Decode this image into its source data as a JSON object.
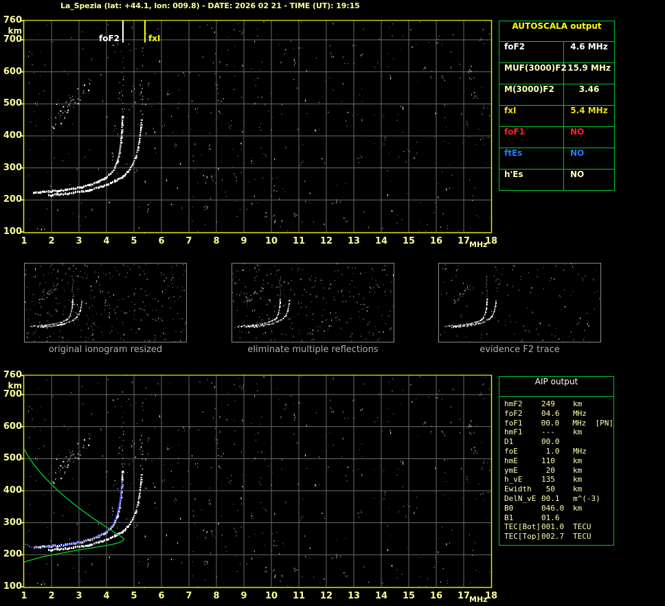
{
  "title": "La_Spezia (lat: +44.1, lon: 009.8) - DATE: 2026 02 21 - TIME (UT): 19:15",
  "colors": {
    "background": "#000000",
    "axis_yellow": "#ffff96",
    "border_yellow": "#e6e600",
    "grid_gray": "#6b6b6b",
    "table_green": "#00c832",
    "pale_yellow": "#ffffb4",
    "bright_yellow": "#f0e000",
    "marker_yellow": "#ffff00",
    "red": "#ff2020",
    "blue": "#2e78ff",
    "white": "#ffffff",
    "caption_gray": "#b0b0b0",
    "profile_green": "#00c828",
    "trace_blue": "#3a4aff"
  },
  "axes": {
    "x_unit": "MHz",
    "y_unit": "km",
    "x_ticks": [
      1,
      2,
      3,
      4,
      5,
      6,
      7,
      8,
      9,
      10,
      11,
      12,
      13,
      14,
      15,
      16,
      17,
      18
    ],
    "y_ticks": [
      760,
      700,
      600,
      500,
      400,
      300,
      200,
      100
    ],
    "x_range": [
      1,
      18
    ],
    "y_range": [
      100,
      760
    ]
  },
  "top_plot": {
    "markers": [
      {
        "label": "foF2",
        "freq": 4.6,
        "color": "#ffffff"
      },
      {
        "label": "fxI",
        "freq": 5.4,
        "color": "#ffff00"
      }
    ]
  },
  "autoscala": {
    "title": "AUTOSCALA output",
    "rows": [
      {
        "label": "foF2",
        "value": "4.6 MHz",
        "color": "white"
      },
      {
        "label": "MUF(3000)F2",
        "value": "15.9 MHz",
        "color": "pale"
      },
      {
        "label": "M(3000)F2",
        "value": "3.46",
        "color": "pale"
      },
      {
        "label": "fxI",
        "value": "5.4 MHz",
        "color": "yellow"
      },
      {
        "label": "foF1",
        "value": "NO",
        "color": "red"
      },
      {
        "label": "ftEs",
        "value": "NO",
        "color": "blue"
      },
      {
        "label": "h'Es",
        "value": "NO",
        "color": "pale"
      }
    ]
  },
  "panels": [
    {
      "caption": "original ionogram resized"
    },
    {
      "caption": "eliminate multiple reflections"
    },
    {
      "caption": "evidence F2 trace"
    }
  ],
  "aip": {
    "title": "AIP output",
    "rows": [
      {
        "label": "hmF2",
        "value": "249",
        "unit": "km"
      },
      {
        "label": "foF2",
        "value": "04.6",
        "unit": "MHz"
      },
      {
        "label": "foF1",
        "value": "00.0",
        "unit": "MHz  [PN]"
      },
      {
        "label": "hmF1",
        "value": "---",
        "unit": "km"
      },
      {
        "label": "D1",
        "value": "00.0",
        "unit": ""
      },
      {
        "label": "foE",
        "value": " 1.0",
        "unit": "MHz"
      },
      {
        "label": "hmE",
        "value": "110",
        "unit": "km"
      },
      {
        "label": "ymE",
        "value": " 20",
        "unit": "km"
      },
      {
        "label": "h_vE",
        "value": "135",
        "unit": "km"
      },
      {
        "label": "Ewidth",
        "value": " 50",
        "unit": "km"
      },
      {
        "label": "DelN_vE",
        "value": "00.1",
        "unit": "m^(-3)"
      },
      {
        "label": "B0",
        "value": "046.0",
        "unit": "km"
      },
      {
        "label": "B1",
        "value": "01.6",
        "unit": ""
      },
      {
        "label": "TEC[Bot]",
        "value": "001.0",
        "unit": "TECU"
      },
      {
        "label": "TEC[Top]",
        "value": "002.7",
        "unit": "TECU"
      }
    ]
  },
  "chart_data": {
    "type": "scatter",
    "xlabel": "MHz",
    "ylabel": "km",
    "xlim": [
      1,
      18
    ],
    "ylim": [
      100,
      760
    ],
    "grid": true,
    "o_trace": [
      [
        1.35,
        221
      ],
      [
        1.6,
        224
      ],
      [
        1.9,
        226
      ],
      [
        2.2,
        228
      ],
      [
        2.5,
        231
      ],
      [
        2.8,
        235
      ],
      [
        3.1,
        240
      ],
      [
        3.4,
        247
      ],
      [
        3.7,
        257
      ],
      [
        3.95,
        268
      ],
      [
        4.15,
        282
      ],
      [
        4.3,
        300
      ],
      [
        4.4,
        322
      ],
      [
        4.47,
        348
      ],
      [
        4.52,
        378
      ],
      [
        4.55,
        408
      ],
      [
        4.57,
        438
      ],
      [
        4.58,
        462
      ]
    ],
    "x_trace": [
      [
        1.9,
        214
      ],
      [
        2.2,
        217
      ],
      [
        2.5,
        219
      ],
      [
        2.8,
        222
      ],
      [
        3.1,
        226
      ],
      [
        3.4,
        231
      ],
      [
        3.7,
        238
      ],
      [
        4.0,
        247
      ],
      [
        4.3,
        259
      ],
      [
        4.6,
        273
      ],
      [
        4.8,
        290
      ],
      [
        4.95,
        310
      ],
      [
        5.07,
        334
      ],
      [
        5.15,
        362
      ],
      [
        5.21,
        392
      ],
      [
        5.25,
        422
      ],
      [
        5.27,
        448
      ]
    ],
    "restored_trace_blue": [
      [
        1.05,
        233
      ],
      [
        1.2,
        226
      ],
      [
        1.35,
        222
      ],
      [
        1.55,
        222
      ],
      [
        1.8,
        225
      ],
      [
        2.1,
        228
      ],
      [
        2.4,
        231
      ],
      [
        2.7,
        234
      ],
      [
        3.0,
        239
      ],
      [
        3.3,
        245
      ],
      [
        3.6,
        253
      ],
      [
        3.85,
        263
      ],
      [
        4.05,
        276
      ],
      [
        4.2,
        292
      ],
      [
        4.32,
        312
      ],
      [
        4.42,
        338
      ],
      [
        4.49,
        368
      ],
      [
        4.53,
        398
      ],
      [
        4.56,
        425
      ]
    ],
    "density_profile_green": [
      [
        1.0,
        530
      ],
      [
        1.15,
        508
      ],
      [
        1.35,
        483
      ],
      [
        1.6,
        456
      ],
      [
        1.9,
        428
      ],
      [
        2.25,
        399
      ],
      [
        2.6,
        373
      ],
      [
        2.95,
        349
      ],
      [
        3.3,
        327
      ],
      [
        3.65,
        306
      ],
      [
        3.95,
        289
      ],
      [
        4.2,
        275
      ],
      [
        4.4,
        264
      ],
      [
        4.55,
        256
      ],
      [
        4.63,
        250
      ],
      [
        4.6,
        244
      ],
      [
        4.45,
        238
      ],
      [
        4.2,
        232
      ],
      [
        3.85,
        227
      ],
      [
        3.45,
        221
      ],
      [
        3.0,
        215
      ],
      [
        2.55,
        208
      ],
      [
        2.1,
        201
      ],
      [
        1.7,
        194
      ],
      [
        1.35,
        186
      ],
      [
        1.1,
        180
      ],
      [
        1.0,
        177
      ]
    ],
    "second_hop_band": {
      "freq": [
        2.0,
        3.45
      ],
      "km_start": 430,
      "km_per_mhz": 100,
      "spread": 50
    },
    "o_echo_streak": {
      "freq": 4.57,
      "km": [
        440,
        670
      ]
    },
    "x_echo_streak": {
      "freq": 5.26,
      "km": [
        430,
        590
      ]
    }
  }
}
